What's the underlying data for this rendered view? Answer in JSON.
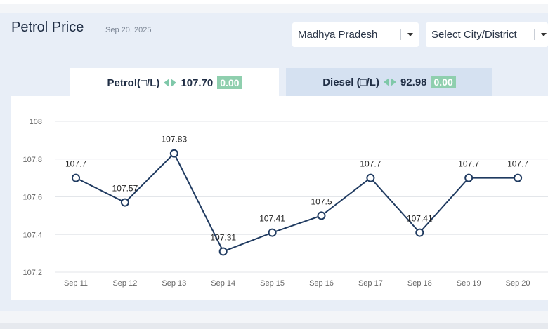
{
  "header": {
    "title": "Petrol Price",
    "date": "Sep 20, 2025"
  },
  "selects": {
    "state": "Madhya Pradesh",
    "city": "Select City/District"
  },
  "tabs": {
    "petrol": {
      "label": "Petrol(□/L)",
      "price": "107.70",
      "change": "0.00"
    },
    "diesel": {
      "label": "Diesel (□/L)",
      "price": "92.98",
      "change": "0.00"
    }
  },
  "colors": {
    "line": "#1f3a60",
    "accent": "#8fcfae",
    "grid": "#e3e6ea"
  },
  "chart_data": {
    "type": "line",
    "categories": [
      "Sep 11",
      "Sep 12",
      "Sep 13",
      "Sep 14",
      "Sep 15",
      "Sep 16",
      "Sep 17",
      "Sep 18",
      "Sep 19",
      "Sep 20"
    ],
    "values": [
      107.7,
      107.57,
      107.83,
      107.31,
      107.41,
      107.5,
      107.7,
      107.41,
      107.7,
      107.7
    ],
    "data_labels": [
      "107.7",
      "107.57",
      "107.83",
      "107.31",
      "107.41",
      "107.5",
      "107.7",
      "107.41",
      "107.7",
      "107.7"
    ],
    "yticks": [
      "108",
      "107.8",
      "107.6",
      "107.4",
      "107.2"
    ],
    "ylim": [
      107.2,
      108
    ],
    "grid": true
  }
}
